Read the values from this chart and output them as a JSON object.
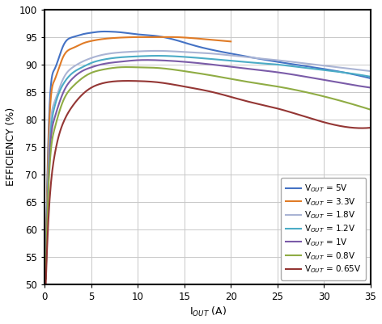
{
  "xlabel": "I$_{OUT}$ (A)",
  "ylabel": "EFFICIENCY (%)",
  "xlim": [
    0,
    35
  ],
  "ylim": [
    50,
    100
  ],
  "xticks": [
    0,
    5,
    10,
    15,
    20,
    25,
    30,
    35
  ],
  "yticks": [
    50,
    55,
    60,
    65,
    70,
    75,
    80,
    85,
    90,
    95,
    100
  ],
  "background_color": "#ffffff",
  "grid_color": "#c8c8c8",
  "series": [
    {
      "label": "V$_{OUT}$ = 5V",
      "color": "#4472c4",
      "x_data": [
        0.1,
        0.5,
        1,
        2,
        3,
        4,
        5,
        6,
        7,
        8,
        10,
        12,
        14,
        16,
        20,
        25,
        30,
        35
      ],
      "y_data": [
        52,
        82,
        89,
        93.5,
        95,
        95.5,
        95.8,
        96.0,
        96.0,
        95.9,
        95.5,
        95.2,
        94.5,
        93.5,
        92.0,
        90.5,
        89.2,
        87.5
      ]
    },
    {
      "label": "V$_{OUT}$ = 3.3V",
      "color": "#e07b26",
      "x_data": [
        0.1,
        0.5,
        1,
        2,
        3,
        4,
        5,
        6,
        8,
        10,
        12,
        14,
        16,
        18,
        20
      ],
      "y_data": [
        52,
        80,
        87,
        91.5,
        93.0,
        93.8,
        94.3,
        94.6,
        94.9,
        95.0,
        95.0,
        95.0,
        94.8,
        94.5,
        94.2
      ]
    },
    {
      "label": "V$_{OUT}$ = 1.8V",
      "color": "#aab4d4",
      "x_data": [
        0.1,
        0.5,
        1,
        2,
        3,
        4,
        5,
        6,
        8,
        10,
        12,
        15,
        18,
        22,
        25,
        28,
        30,
        35
      ],
      "y_data": [
        51,
        76,
        83,
        87.5,
        89.5,
        90.5,
        91.2,
        91.7,
        92.2,
        92.4,
        92.5,
        92.3,
        92.0,
        91.3,
        90.8,
        90.2,
        89.8,
        88.8
      ]
    },
    {
      "label": "V$_{OUT}$ = 1.2V",
      "color": "#4bacc6",
      "x_data": [
        0.1,
        0.5,
        1,
        2,
        3,
        4,
        5,
        6,
        8,
        10,
        12,
        15,
        18,
        22,
        25,
        28,
        30,
        35
      ],
      "y_data": [
        51,
        74,
        82,
        86.5,
        88.5,
        89.5,
        90.3,
        90.8,
        91.3,
        91.5,
        91.6,
        91.4,
        91.0,
        90.4,
        90.0,
        89.4,
        89.0,
        87.8
      ]
    },
    {
      "label": "V$_{OUT}$ = 1V",
      "color": "#7a5ba8",
      "x_data": [
        0.1,
        0.5,
        1,
        2,
        3,
        4,
        5,
        6,
        8,
        10,
        12,
        15,
        18,
        22,
        25,
        28,
        30,
        35
      ],
      "y_data": [
        51,
        73,
        80,
        85,
        87.5,
        88.8,
        89.5,
        90.0,
        90.5,
        90.8,
        90.8,
        90.5,
        90.0,
        89.2,
        88.6,
        87.8,
        87.2,
        85.8
      ]
    },
    {
      "label": "V$_{OUT}$ = 0.8V",
      "color": "#8fac44",
      "x_data": [
        0.1,
        0.5,
        1,
        2,
        3,
        4,
        5,
        6,
        8,
        10,
        12,
        15,
        18,
        22,
        25,
        28,
        30,
        35
      ],
      "y_data": [
        51,
        71,
        78,
        83.5,
        86,
        87.5,
        88.5,
        89.0,
        89.5,
        89.5,
        89.4,
        88.8,
        88.0,
        86.8,
        86.0,
        85.0,
        84.2,
        81.8
      ]
    },
    {
      "label": "V$_{OUT}$ = 0.65V",
      "color": "#943634",
      "x_data": [
        0.1,
        0.5,
        1,
        2,
        3,
        4,
        5,
        6,
        8,
        10,
        12,
        15,
        18,
        22,
        25,
        28,
        30,
        35
      ],
      "y_data": [
        50,
        65,
        73,
        79.5,
        82.5,
        84.5,
        85.8,
        86.5,
        87.0,
        87.0,
        86.8,
        86.0,
        85.0,
        83.2,
        82.0,
        80.5,
        79.5,
        78.5
      ]
    }
  ]
}
